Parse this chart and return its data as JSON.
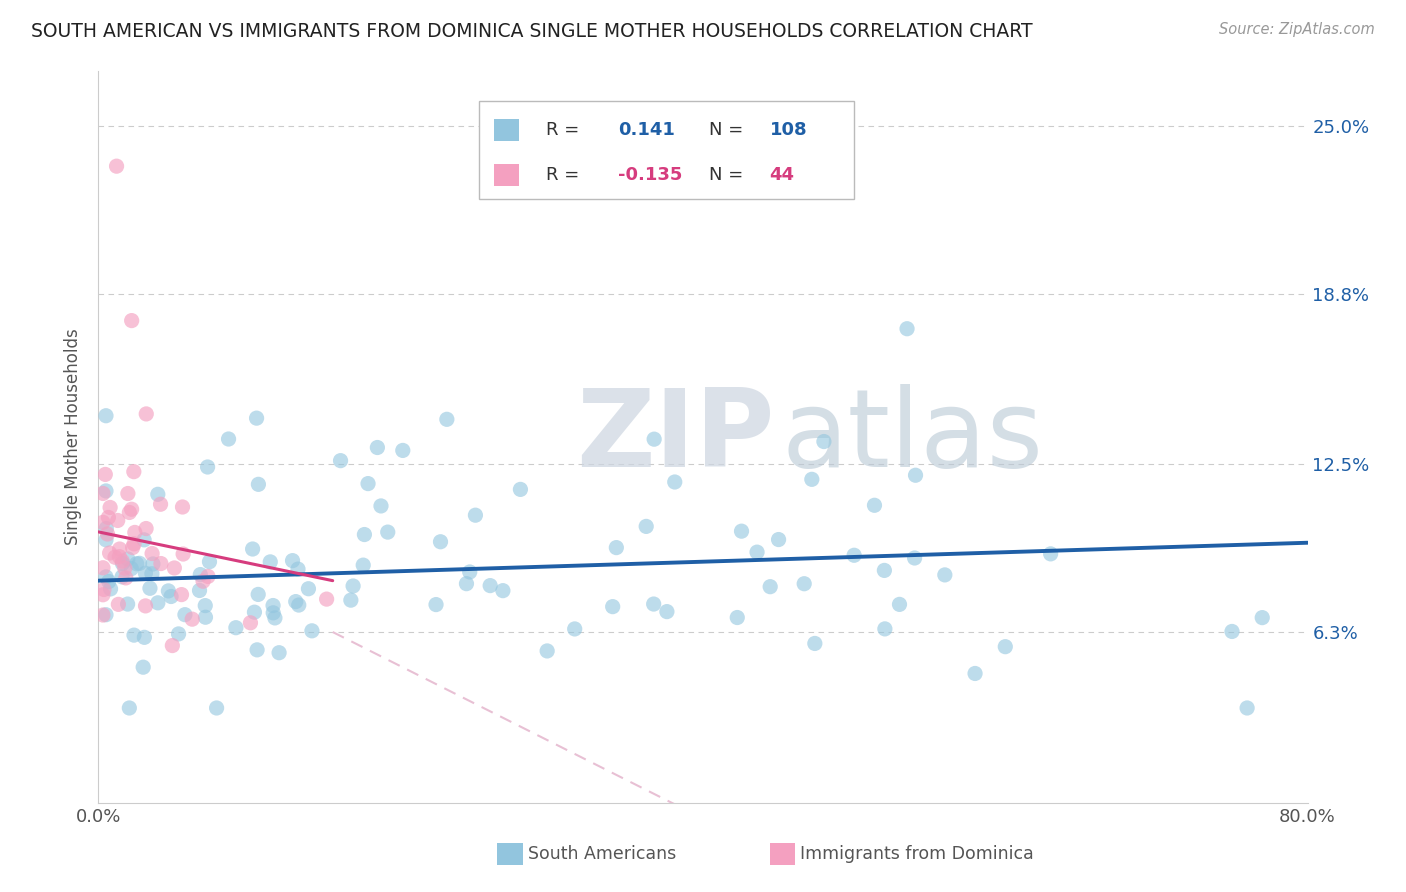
{
  "title": "SOUTH AMERICAN VS IMMIGRANTS FROM DOMINICA SINGLE MOTHER HOUSEHOLDS CORRELATION CHART",
  "source_text": "Source: ZipAtlas.com",
  "ylabel": "Single Mother Households",
  "xlim": [
    0.0,
    0.8
  ],
  "ylim": [
    0.0,
    0.27
  ],
  "ytick_values": [
    0.063,
    0.125,
    0.188,
    0.25
  ],
  "ytick_labels_right": [
    "6.3%",
    "12.5%",
    "18.8%",
    "25.0%"
  ],
  "xtick_values": [
    0.0,
    0.8
  ],
  "xtick_labels": [
    "0.0%",
    "80.0%"
  ],
  "color_blue": "#92c5de",
  "color_pink": "#f4a0c0",
  "color_trendline_blue": "#1f5fa6",
  "color_trendline_pink": "#d63c7e",
  "color_trendline_pink_ext": "#e8c0d4",
  "legend_box_color": "#dddddd",
  "watermark_zip_color": "#d0d8e8",
  "watermark_atlas_color": "#b8c8d8"
}
